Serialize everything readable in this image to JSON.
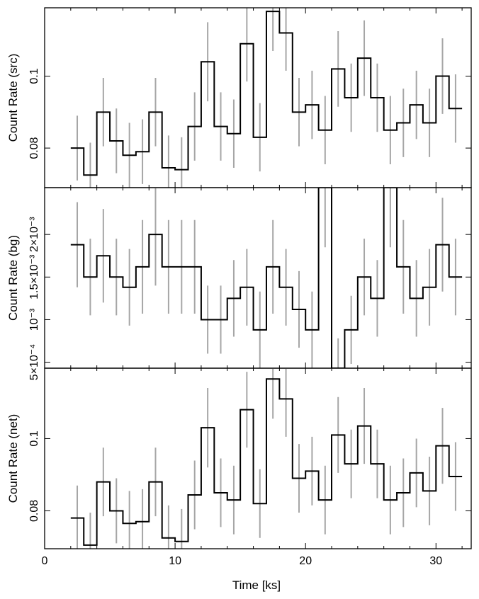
{
  "chart_data": {
    "type": "line",
    "xlabel": "Time [ks]",
    "x_ticks": [
      0,
      10,
      20,
      30
    ],
    "xlim": [
      0,
      32.7
    ],
    "bin_edges": [
      2,
      3,
      4,
      5,
      6,
      7,
      8,
      9,
      10,
      11,
      12,
      13,
      14,
      15,
      16,
      17,
      18,
      19,
      20,
      21,
      22,
      23,
      24,
      25,
      26,
      27,
      28,
      29,
      30,
      31,
      32
    ],
    "panels": [
      {
        "id": "src",
        "ylabel": "Count Rate (src)",
        "ylim": [
          0.069,
          0.119
        ],
        "y_ticks": [
          {
            "value": 0.08,
            "label": "0.08"
          },
          {
            "value": 0.1,
            "label": "0.1"
          }
        ],
        "values": [
          0.08,
          0.0725,
          0.09,
          0.082,
          0.078,
          0.079,
          0.09,
          0.0745,
          0.074,
          0.086,
          0.104,
          0.086,
          0.084,
          0.109,
          0.083,
          0.118,
          0.112,
          0.09,
          0.092,
          0.085,
          0.102,
          0.094,
          0.105,
          0.094,
          0.085,
          0.087,
          0.092,
          0.087,
          0.1,
          0.091
        ],
        "errors": [
          0.009,
          0.009,
          0.0095,
          0.009,
          0.009,
          0.009,
          0.0095,
          0.009,
          0.009,
          0.0095,
          0.011,
          0.0095,
          0.0095,
          0.0105,
          0.0095,
          0.011,
          0.0105,
          0.0095,
          0.0095,
          0.0095,
          0.0105,
          0.0095,
          0.0105,
          0.0095,
          0.0095,
          0.0095,
          0.0095,
          0.0095,
          0.0105,
          0.0095
        ]
      },
      {
        "id": "bg",
        "ylabel": "Count Rate (bg)",
        "ylim": [
          0.00043,
          0.00255
        ],
        "y_ticks": [
          {
            "value": 0.0005,
            "label": "5×10⁻⁴"
          },
          {
            "value": 0.001,
            "label": "10⁻³"
          },
          {
            "value": 0.0015,
            "label": "1.5×10⁻³"
          },
          {
            "value": 0.002,
            "label": "2×10⁻³"
          }
        ],
        "values": [
          0.00188,
          0.0015,
          0.00175,
          0.0015,
          0.00138,
          0.00162,
          0.002,
          0.00162,
          0.00162,
          0.00162,
          0.001,
          0.001,
          0.00125,
          0.00138,
          0.00088,
          0.00162,
          0.00138,
          0.00112,
          0.00088,
          0.00255,
          0.00043,
          0.00088,
          0.0015,
          0.00125,
          0.00255,
          0.00162,
          0.00125,
          0.00138,
          0.00188,
          0.0015
        ],
        "errors": [
          0.0005,
          0.00045,
          0.00055,
          0.00045,
          0.00045,
          0.00055,
          0.0006,
          0.00055,
          0.00055,
          0.00055,
          0.0004,
          0.0004,
          0.00045,
          0.00045,
          0.00045,
          0.00055,
          0.00045,
          0.00045,
          0.00045,
          0.0007,
          0.00035,
          0.0004,
          0.00045,
          0.00045,
          0.0007,
          0.00055,
          0.00045,
          0.00045,
          0.00055,
          0.00045
        ]
      },
      {
        "id": "net",
        "ylabel": "Count Rate (net)",
        "ylim": [
          0.0695,
          0.1195
        ],
        "y_ticks": [
          {
            "value": 0.08,
            "label": "0.08"
          },
          {
            "value": 0.1,
            "label": "0.1"
          }
        ],
        "values": [
          0.078,
          0.0705,
          0.088,
          0.08,
          0.0765,
          0.077,
          0.088,
          0.0725,
          0.0715,
          0.0844,
          0.103,
          0.085,
          0.083,
          0.108,
          0.082,
          0.1165,
          0.111,
          0.089,
          0.091,
          0.083,
          0.101,
          0.093,
          0.1035,
          0.093,
          0.083,
          0.085,
          0.0905,
          0.0855,
          0.098,
          0.0895
        ],
        "errors": [
          0.009,
          0.009,
          0.0095,
          0.009,
          0.009,
          0.009,
          0.0095,
          0.009,
          0.009,
          0.0095,
          0.011,
          0.0095,
          0.0095,
          0.0105,
          0.0095,
          0.011,
          0.0105,
          0.0095,
          0.0095,
          0.0095,
          0.0105,
          0.0095,
          0.0105,
          0.0095,
          0.0095,
          0.0095,
          0.0095,
          0.0095,
          0.0105,
          0.0095
        ]
      }
    ]
  }
}
